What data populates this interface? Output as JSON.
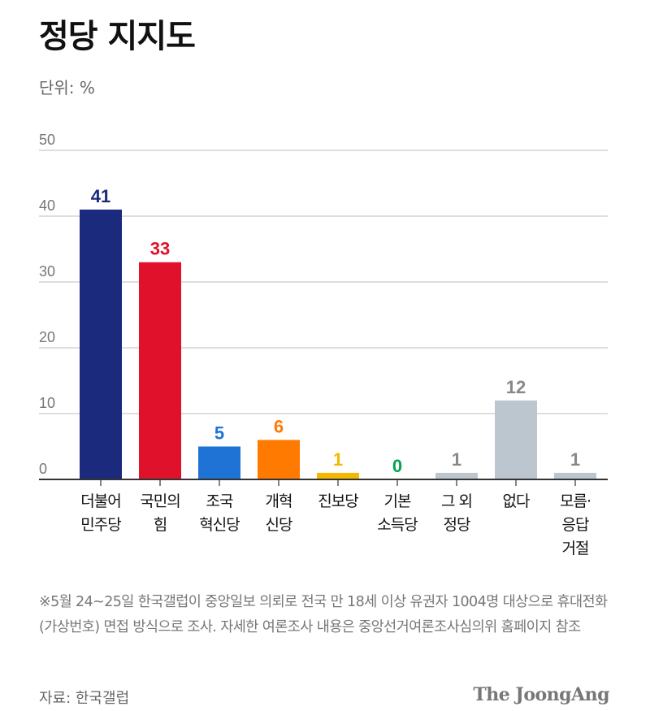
{
  "title": "정당 지지도",
  "unit": "단위: %",
  "chart_data": {
    "type": "bar",
    "categories": [
      [
        "더불어",
        "민주당"
      ],
      [
        "국민의",
        "힘"
      ],
      [
        "조국",
        "혁신당"
      ],
      [
        "개혁",
        "신당"
      ],
      [
        "진보당"
      ],
      [
        "기본",
        "소득당"
      ],
      [
        "그 외",
        "정당"
      ],
      [
        "없다"
      ],
      [
        "모름·",
        "응답",
        "거절"
      ]
    ],
    "values": [
      41,
      33,
      5,
      6,
      1,
      0,
      1,
      12,
      1
    ],
    "colors": [
      "#1b2a7d",
      "#e0112b",
      "#1f73d4",
      "#ff7a00",
      "#f5b800",
      "#00a650",
      "#bcc6ce",
      "#bcc6ce",
      "#bcc6ce"
    ],
    "label_colors": [
      "#1b2a7d",
      "#e0112b",
      "#1f73d4",
      "#ff7a00",
      "#f5b800",
      "#00a650",
      "#888888",
      "#888888",
      "#888888"
    ],
    "ylim": [
      0,
      50
    ],
    "yticks": [
      0,
      10,
      20,
      30,
      40,
      50
    ],
    "grid": true,
    "title": "정당 지지도",
    "ylabel": "단위: %",
    "xlabel": ""
  },
  "note": "※5월 24~25일 한국갤럽이 중앙일보 의뢰로 전국 만 18세 이상 유권자 1004명 대상으로 휴대전화(가상번호) 면접 방식으로 조사. 자세한 여론조사 내용은 중앙선거여론조사심의위 홈페이지 참조",
  "source": "자료: 한국갤럽",
  "logo": "The JoongAng"
}
